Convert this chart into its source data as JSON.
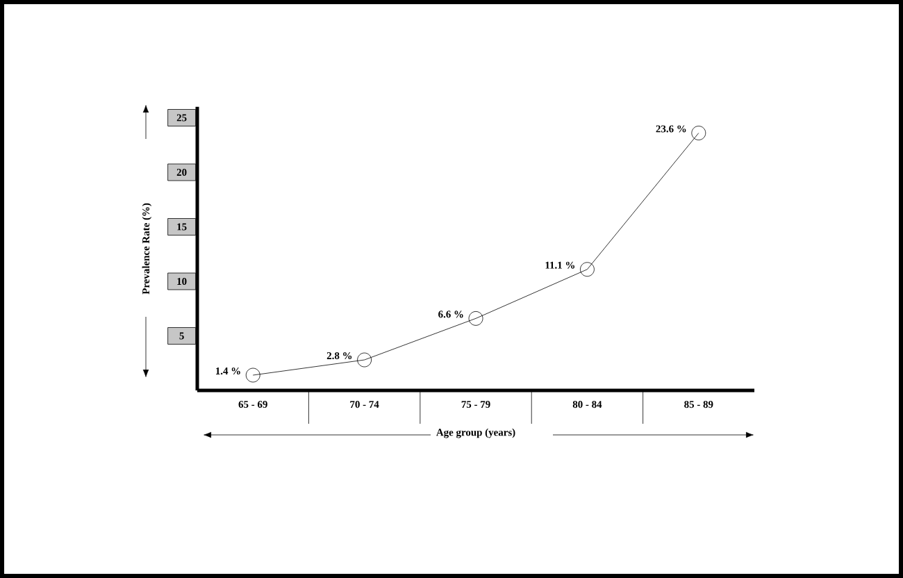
{
  "chart_data": {
    "type": "line",
    "xlabel": "Age group (years)",
    "ylabel": "Prevalence Rate (%)",
    "categories": [
      "65 - 69",
      "70 - 74",
      "75 - 79",
      "80 - 84",
      "85 - 89"
    ],
    "values": [
      1.4,
      2.8,
      6.6,
      11.1,
      23.6
    ],
    "value_labels": [
      "1.4 %",
      "2.8 %",
      "6.6 %",
      "11.1 %",
      "23.6 %"
    ],
    "color": "#000000",
    "marker": "circle",
    "line_style": "solid",
    "ylim": [
      0,
      26
    ],
    "yticks": [
      5,
      10,
      15,
      20,
      25
    ]
  }
}
